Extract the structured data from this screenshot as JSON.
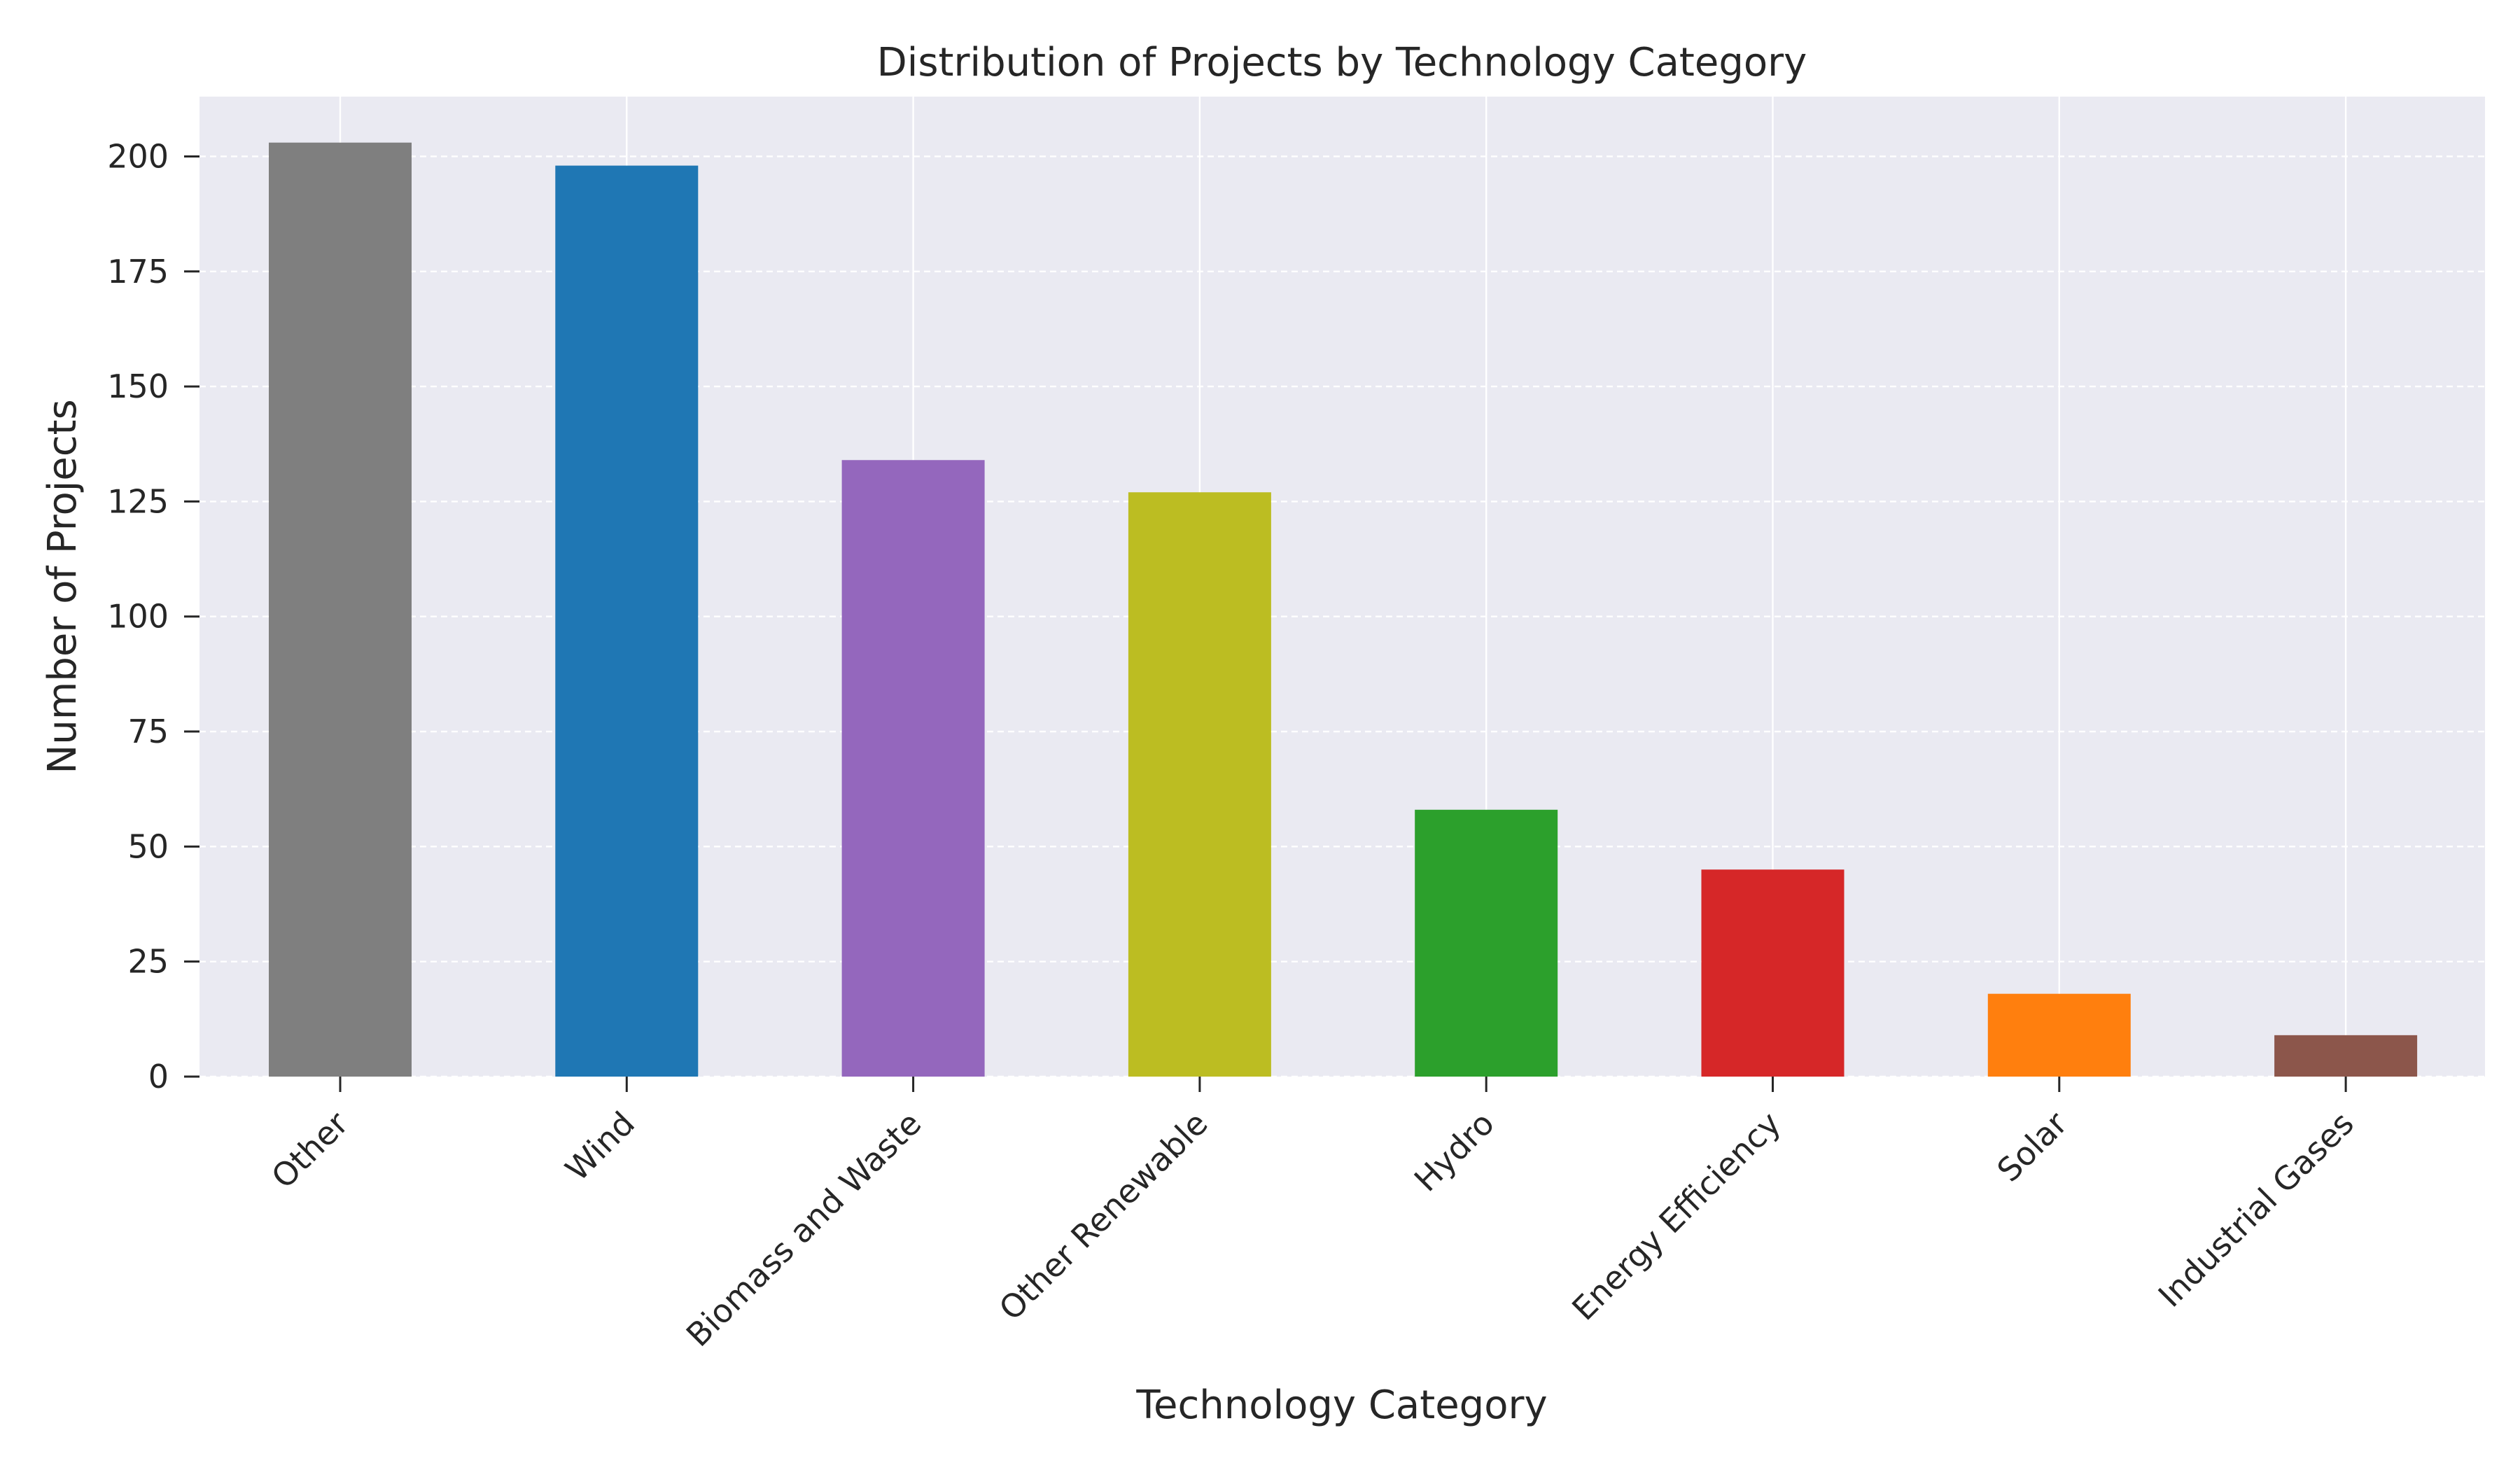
{
  "chart_data": {
    "type": "bar",
    "title": "Distribution of Projects by Technology Category",
    "xlabel": "Technology Category",
    "ylabel": "Number of Projects",
    "categories": [
      "Other",
      "Wind",
      "Biomass and Waste",
      "Other Renewable",
      "Hydro",
      "Energy Efficiency",
      "Solar",
      "Industrial Gases"
    ],
    "values": [
      203,
      198,
      134,
      127,
      58,
      45,
      18,
      9
    ],
    "colors": [
      "#7f7f7f",
      "#1f77b4",
      "#9467bd",
      "#bcbd22",
      "#2ca02c",
      "#d62728",
      "#ff7f0e",
      "#8c564b"
    ],
    "ylim": [
      0,
      213
    ],
    "yticks": [
      0,
      25,
      50,
      75,
      100,
      125,
      150,
      175,
      200
    ],
    "grid": true,
    "legend": "none",
    "plot_background": "#eaeaf2"
  }
}
